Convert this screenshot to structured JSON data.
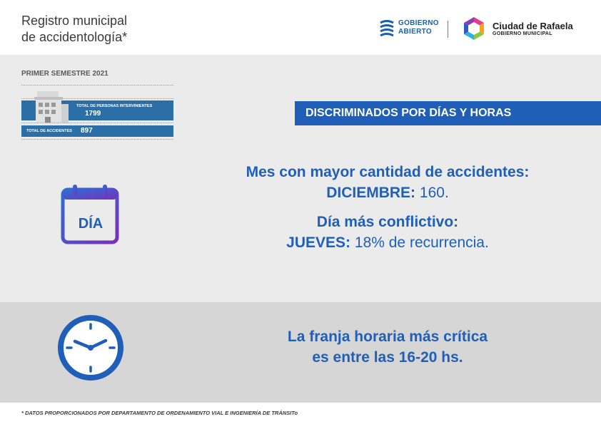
{
  "header": {
    "title_line1": "Registro municipal",
    "title_line2": "de accidentología*",
    "gobierno_abierto_line1": "GOBIERNO",
    "gobierno_abierto_line2": "ABIERTO",
    "ciudad_name": "Ciudad de Rafaela",
    "ciudad_sub": "GOBIERNO MUNICIPAL"
  },
  "summary": {
    "semester": "PRIMER SEMESTRE 2021",
    "personas_label": "TOTAL DE PERSONAS INTERVINIENTES",
    "personas_value": "1799",
    "accidentes_label": "TOTAL DE ACCIDENTES",
    "accidentes_value": "897"
  },
  "banner": {
    "label": "DISCRIMINADOS POR DÍAS Y HORAS"
  },
  "month": {
    "heading": "Mes con mayor cantidad de accidentes:",
    "name": "DICIEMBRE:",
    "value": "160."
  },
  "day": {
    "icon_label": "DÍA",
    "heading": "Día más conflictivo:",
    "name": "JUEVES:",
    "value": "18% de recurrencia."
  },
  "time": {
    "line1": "La franja horaria más crítica",
    "line2": "es entre las 16-20 hs."
  },
  "footnote": "* DATOS PROPORCIONADOS POR DEPARTAMENTO DE ORDENAMIENTO VIAL E INGENIERÍA DE TRÁNSITo",
  "colors": {
    "brand_blue": "#1f5fb8",
    "stat_blue": "#2c6ea6",
    "panel_light": "#ebebeb",
    "panel_dark": "#d6d6d6"
  },
  "icons": [
    "gobierno-abierto-logo",
    "ciudad-rafaela-logo",
    "building-icon",
    "calendar-icon",
    "clock-icon"
  ]
}
